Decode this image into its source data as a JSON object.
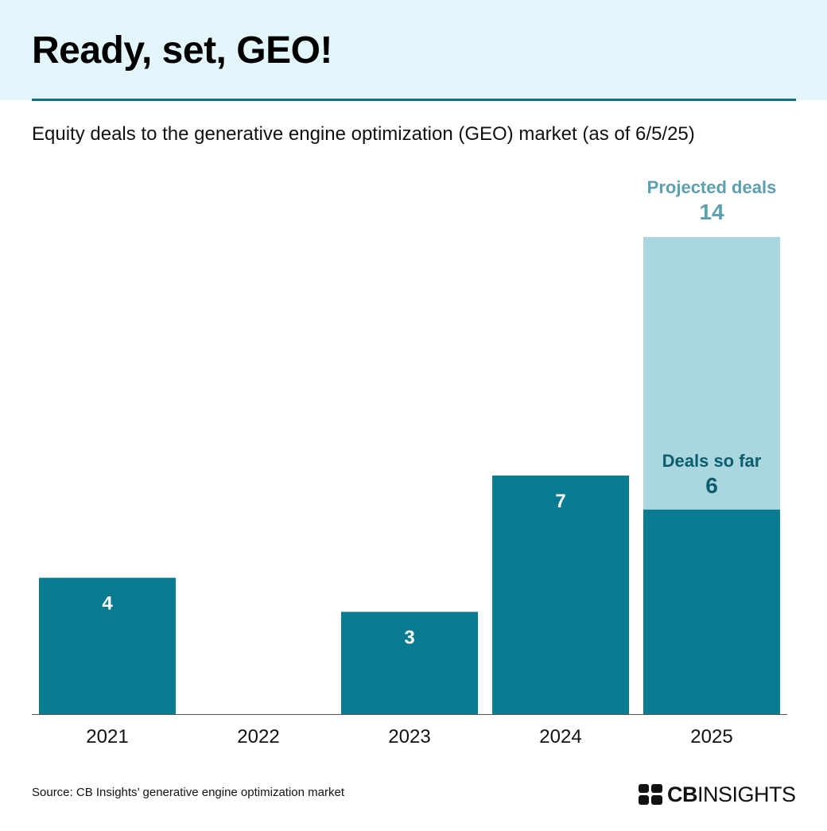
{
  "title": "Ready, set, GEO!",
  "subtitle": "Equity deals to the generative engine optimization (GEO) market (as of 6/5/25)",
  "source": "Source: CB Insights’ generative engine optimization market",
  "logo": {
    "bold": "CB",
    "rest": "INSIGHTS"
  },
  "colors": {
    "actual": "#087b90",
    "projected": "#a9d6df",
    "projected_text": "#5c9fad",
    "deals_so_far_text": "#0b5e6e",
    "header_bg": "#e3f6fb"
  },
  "chart_data": {
    "type": "bar",
    "categories": [
      "2021",
      "2022",
      "2023",
      "2024",
      "2025"
    ],
    "series": [
      {
        "name": "Deals so far",
        "values": [
          4,
          0,
          3,
          7,
          6
        ]
      },
      {
        "name": "Projected deals",
        "values": [
          null,
          null,
          null,
          null,
          14
        ]
      }
    ],
    "data_labels": [
      "4",
      "",
      "3",
      "7",
      ""
    ],
    "annotations": {
      "projected_label": "Projected deals",
      "projected_value": "14",
      "so_far_label": "Deals so far",
      "so_far_value": "6"
    },
    "ylim": [
      0,
      14
    ],
    "grid": false
  }
}
